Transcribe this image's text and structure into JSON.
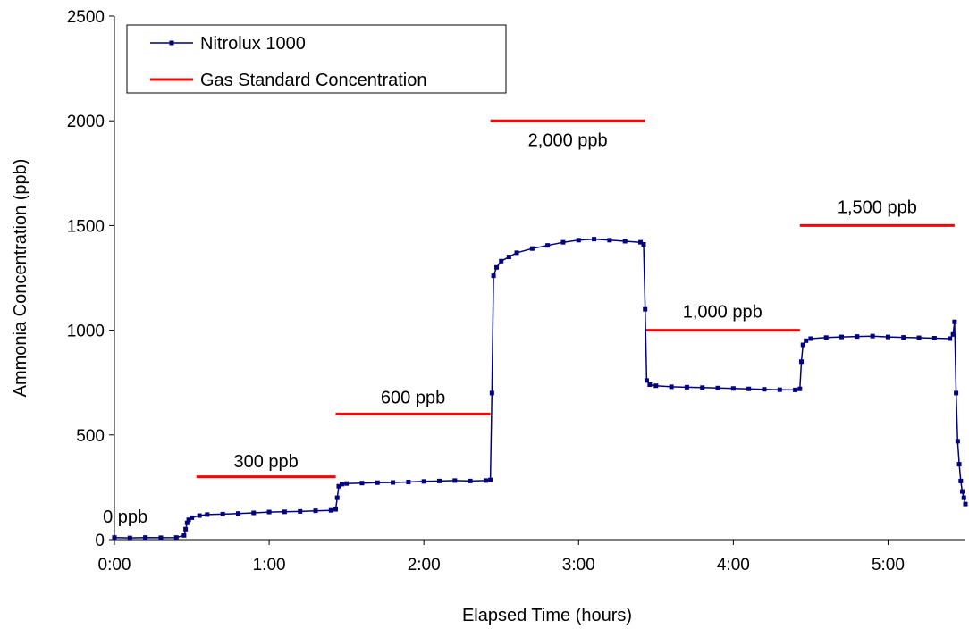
{
  "chart_data": {
    "type": "line",
    "title": "",
    "xlabel": "Elapsed Time (hours)",
    "ylabel": "Ammonia Concentration (ppb)",
    "xlim": [
      0,
      5.5
    ],
    "ylim": [
      0,
      2500
    ],
    "xticks": [
      0,
      1,
      2,
      3,
      4,
      5
    ],
    "xtick_labels": [
      "0:00",
      "1:00",
      "2:00",
      "3:00",
      "4:00",
      "5:00"
    ],
    "yticks": [
      0,
      500,
      1000,
      1500,
      2000,
      2500
    ],
    "ytick_labels": [
      "0",
      "500",
      "1000",
      "1500",
      "2000",
      "2500"
    ],
    "legend": {
      "placement": "top-left",
      "entries": [
        "Nitrolux 1000",
        "Gas Standard Concentration"
      ]
    },
    "series": [
      {
        "name": "Nitrolux 1000",
        "color": "#000080",
        "marker": "square",
        "x": [
          0.0,
          0.1,
          0.2,
          0.3,
          0.4,
          0.45,
          0.46,
          0.47,
          0.48,
          0.5,
          0.55,
          0.6,
          0.7,
          0.8,
          0.9,
          1.0,
          1.1,
          1.2,
          1.3,
          1.4,
          1.43,
          1.44,
          1.45,
          1.47,
          1.5,
          1.6,
          1.7,
          1.8,
          1.9,
          2.0,
          2.1,
          2.2,
          2.3,
          2.4,
          2.43,
          2.44,
          2.45,
          2.47,
          2.5,
          2.55,
          2.6,
          2.7,
          2.8,
          2.9,
          3.0,
          3.1,
          3.2,
          3.3,
          3.4,
          3.42,
          3.43,
          3.44,
          3.46,
          3.5,
          3.6,
          3.7,
          3.8,
          3.9,
          4.0,
          4.1,
          4.2,
          4.3,
          4.4,
          4.43,
          4.44,
          4.45,
          4.47,
          4.5,
          4.6,
          4.7,
          4.8,
          4.9,
          5.0,
          5.1,
          5.2,
          5.3,
          5.4,
          5.42,
          5.43,
          5.44,
          5.45,
          5.46,
          5.47,
          5.48,
          5.49,
          5.5
        ],
        "y": [
          10,
          8,
          10,
          9,
          10,
          20,
          50,
          80,
          95,
          105,
          115,
          120,
          122,
          125,
          128,
          132,
          133,
          135,
          138,
          140,
          145,
          200,
          255,
          265,
          268,
          270,
          272,
          273,
          275,
          278,
          280,
          282,
          280,
          282,
          285,
          700,
          1260,
          1300,
          1330,
          1350,
          1370,
          1390,
          1405,
          1420,
          1430,
          1435,
          1430,
          1425,
          1420,
          1410,
          1100,
          760,
          740,
          735,
          730,
          728,
          726,
          724,
          722,
          720,
          718,
          716,
          715,
          720,
          850,
          930,
          950,
          960,
          965,
          968,
          970,
          972,
          968,
          966,
          964,
          962,
          960,
          980,
          1040,
          700,
          470,
          360,
          280,
          230,
          200,
          170
        ]
      },
      {
        "name": "Gas Standard Concentration",
        "color": "#ff0000",
        "segments": [
          {
            "x": [
              0.53,
              1.43
            ],
            "y": 300
          },
          {
            "x": [
              1.43,
              2.43
            ],
            "y": 600
          },
          {
            "x": [
              2.43,
              3.43
            ],
            "y": 2000
          },
          {
            "x": [
              3.43,
              4.43
            ],
            "y": 1000
          },
          {
            "x": [
              4.43,
              5.43
            ],
            "y": 1500
          }
        ]
      }
    ],
    "annotations": [
      {
        "text": "0 ppb",
        "x": 0.07,
        "y": 80
      },
      {
        "text": "300 ppb",
        "x": 0.98,
        "y": 345
      },
      {
        "text": "600 ppb",
        "x": 1.93,
        "y": 650
      },
      {
        "text": "2,000 ppb",
        "x": 2.93,
        "y": 1880
      },
      {
        "text": "1,000 ppb",
        "x": 3.93,
        "y": 1060
      },
      {
        "text": "1,500 ppb",
        "x": 4.93,
        "y": 1560
      }
    ]
  }
}
